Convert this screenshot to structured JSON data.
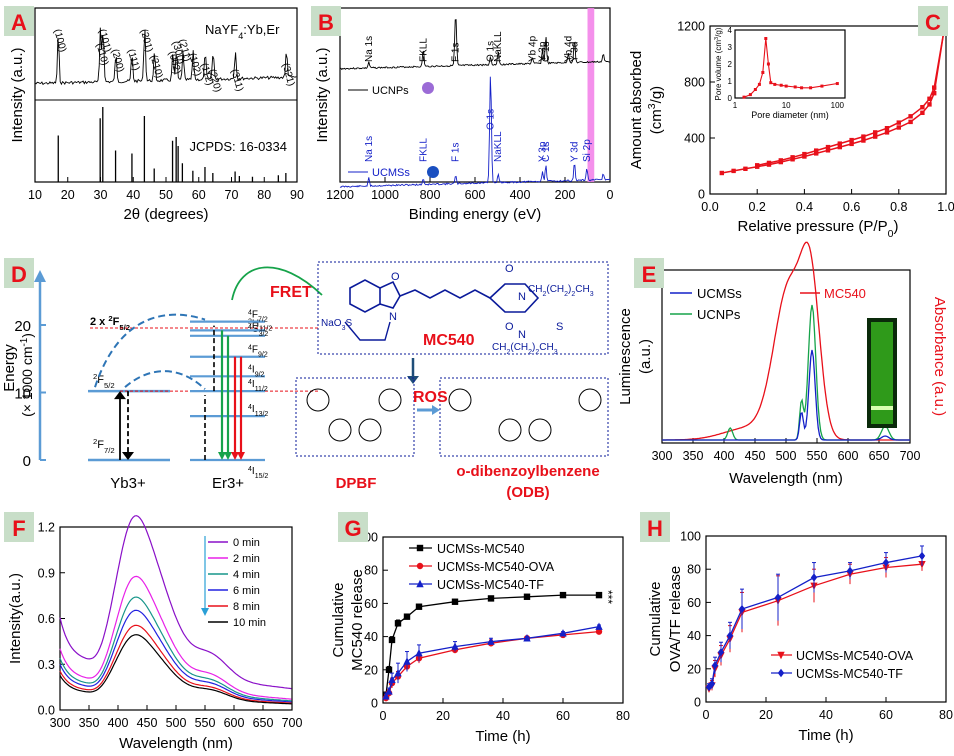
{
  "colors": {
    "black": "#000000",
    "red": "#e8101a",
    "blue": "#1420c8",
    "green": "#16a34a",
    "magenta": "#cc22cc",
    "cyan": "#2a9fd6",
    "darkblue": "#0a1a9a",
    "label_bg": "#c8dec8",
    "label_fg": "#e8101a",
    "pink": "#f27de8"
  },
  "panels": {
    "A": {
      "letter": "A",
      "material": "NaYF4:Yb,Er",
      "reference": "JCPDS: 16-0334",
      "xlabel": "2θ (degrees)",
      "ylabel": "Intensity (a.u.)",
      "xticks": [
        "10",
        "20",
        "30",
        "40",
        "50",
        "60",
        "70",
        "80",
        "90"
      ],
      "peaks": [
        {
          "hkl": "(100)",
          "x": 17.1
        },
        {
          "hkl": "(110)",
          "x": 30.0
        },
        {
          "hkl": "(101)",
          "x": 30.8
        },
        {
          "hkl": "(200)",
          "x": 34.7
        },
        {
          "hkl": "(111)",
          "x": 39.6
        },
        {
          "hkl": "(201)",
          "x": 43.5
        },
        {
          "hkl": "(210)",
          "x": 46.5
        },
        {
          "hkl": "(002)",
          "x": 52.1
        },
        {
          "hkl": "(300)",
          "x": 53.2
        },
        {
          "hkl": "(211)",
          "x": 55.2
        },
        {
          "hkl": "(102)",
          "x": 58.3
        },
        {
          "hkl": "(112)",
          "x": 62.0
        },
        {
          "hkl": "(220)",
          "x": 64.4
        },
        {
          "hkl": "(311)",
          "x": 71.2
        },
        {
          "hkl": "(321)",
          "x": 86.8
        }
      ],
      "ref_lines": [
        {
          "x": 17.1,
          "h": 0.62
        },
        {
          "x": 29.9,
          "h": 0.85
        },
        {
          "x": 30.7,
          "h": 1.0
        },
        {
          "x": 34.6,
          "h": 0.42
        },
        {
          "x": 39.6,
          "h": 0.38
        },
        {
          "x": 43.4,
          "h": 0.88
        },
        {
          "x": 46.4,
          "h": 0.18
        },
        {
          "x": 52.0,
          "h": 0.55
        },
        {
          "x": 53.1,
          "h": 0.6
        },
        {
          "x": 53.7,
          "h": 0.48
        },
        {
          "x": 55.0,
          "h": 0.25
        },
        {
          "x": 58.2,
          "h": 0.15
        },
        {
          "x": 61.9,
          "h": 0.2
        },
        {
          "x": 64.3,
          "h": 0.12
        },
        {
          "x": 71.1,
          "h": 0.14
        },
        {
          "x": 72.4,
          "h": 0.08
        },
        {
          "x": 76.4,
          "h": 0.07
        },
        {
          "x": 84.3,
          "h": 0.09
        },
        {
          "x": 86.6,
          "h": 0.12
        }
      ]
    },
    "B": {
      "letter": "B",
      "xlabel": "Binding energy (eV)",
      "ylabel": "Intensity (a.u.)",
      "xticks": [
        "1200",
        "1000",
        "800",
        "600",
        "400",
        "200",
        "0"
      ],
      "legend": {
        "ucnps": "UCNPs",
        "ucmss": "UCMSs"
      },
      "labels_top": [
        {
          "t": "Na 1s",
          "x": 1072
        },
        {
          "t": "FKLL",
          "x": 830
        },
        {
          "t": "F 1s",
          "x": 686
        },
        {
          "t": "O 1s",
          "x": 531
        },
        {
          "t": "NaKLL",
          "x": 497
        },
        {
          "t": "Yb 4p",
          "x": 345
        },
        {
          "t": "Y 3p",
          "x": 300
        },
        {
          "t": "C 1s",
          "x": 285
        },
        {
          "t": "Yb 4d",
          "x": 185
        },
        {
          "t": "Y 3d",
          "x": 158
        }
      ],
      "labels_bottom": [
        {
          "t": "Na 1s",
          "x": 1072
        },
        {
          "t": "FKLL",
          "x": 830
        },
        {
          "t": "F 1s",
          "x": 686
        },
        {
          "t": "O 1s",
          "x": 531
        },
        {
          "t": "NaKLL",
          "x": 497
        },
        {
          "t": "Y 3p",
          "x": 300
        },
        {
          "t": "C 1s",
          "x": 285
        },
        {
          "t": "Y 3d",
          "x": 158
        },
        {
          "t": "Si 2p",
          "x": 103
        }
      ]
    },
    "C": {
      "letter": "C",
      "xlabel": "Relative pressure (P/P0)",
      "ylabel": "Amount absorbed (cm3/g)",
      "xticks": [
        "0.0",
        "0.2",
        "0.4",
        "0.6",
        "0.8",
        "1.0"
      ],
      "yticks": [
        "0",
        "400",
        "800",
        "1200"
      ],
      "adsorption": {
        "x": [
          0.05,
          0.1,
          0.15,
          0.2,
          0.25,
          0.3,
          0.35,
          0.4,
          0.45,
          0.5,
          0.55,
          0.6,
          0.65,
          0.7,
          0.75,
          0.8,
          0.85,
          0.9,
          0.93,
          0.95,
          0.99
        ],
        "y": [
          150,
          165,
          180,
          195,
          210,
          228,
          248,
          268,
          290,
          312,
          335,
          358,
          382,
          410,
          440,
          475,
          515,
          580,
          640,
          720,
          1150
        ]
      },
      "desorption": {
        "x": [
          0.99,
          0.95,
          0.93,
          0.9,
          0.85,
          0.8,
          0.75,
          0.7,
          0.65,
          0.6,
          0.55,
          0.5,
          0.45,
          0.4,
          0.35,
          0.3,
          0.25,
          0.2
        ],
        "y": [
          1150,
          760,
          680,
          620,
          555,
          510,
          470,
          440,
          410,
          385,
          360,
          335,
          310,
          285,
          262,
          240,
          222,
          205
        ]
      },
      "inset": {
        "xlabel": "Pore diameter (nm)",
        "ylabel": "Pore volume (cm3/g)",
        "xticks": [
          "1",
          "10",
          "100"
        ],
        "yticks": [
          "0",
          "1",
          "2",
          "3",
          "4"
        ],
        "d": [
          1.5,
          2,
          2.5,
          3,
          3.5,
          4,
          4.5,
          5,
          6,
          8,
          10,
          15,
          20,
          30,
          50,
          100
        ],
        "v": [
          0.05,
          0.2,
          0.5,
          0.8,
          1.5,
          3.5,
          2.0,
          0.9,
          0.8,
          0.75,
          0.7,
          0.65,
          0.6,
          0.6,
          0.7,
          0.85
        ]
      }
    },
    "D": {
      "letter": "D",
      "ylabel1": "Energy",
      "ylabel2": "(× 1000 cm-1)",
      "yticks": [
        "0",
        "10",
        "20"
      ],
      "yb": "Yb3+",
      "er": "Er3+",
      "fret": "FRET",
      "yb_levels": [
        "2F7/2",
        "2F5/2",
        "2 x 2F5/2"
      ],
      "er_levels": [
        "4F7/2",
        "2H11/2",
        "4S3/2",
        "4F9/2",
        "4I9/2",
        "4I11/2",
        "4I13/2",
        "4I15/2"
      ],
      "mc540": "MC540",
      "ros": "ROS",
      "dpbf": "DPBF",
      "odb1": "o-dibenzoylbenzene",
      "odb2": "(ODB)",
      "chem": {
        "so3na": "NaO3S",
        "chain1": "CH2(CH2)2CH3",
        "chain2": "CH2(CH2)2CH3"
      }
    },
    "E": {
      "letter": "E",
      "xlabel": "Wavelength (nm)",
      "ylabel_left": "Luminescence (a.u.)",
      "ylabel_right": "Absorbance (a.u.)",
      "xticks": [
        "300",
        "350",
        "400",
        "450",
        "500",
        "550",
        "600",
        "650",
        "700"
      ],
      "legend": {
        "ucmss": "UCMSs",
        "ucnps": "UCNPs",
        "mc540": "MC540"
      }
    },
    "F": {
      "letter": "F",
      "xlabel": "Wavelength (nm)",
      "ylabel": "Intensity(a.u.)",
      "xticks": [
        "300",
        "350",
        "400",
        "450",
        "500",
        "550",
        "600",
        "650",
        "700"
      ],
      "yticks": [
        "0.0",
        "0.3",
        "0.6",
        "0.9",
        "1.2"
      ],
      "series": [
        {
          "name": "0 min",
          "color": "#8a10c8",
          "scale": 1.0
        },
        {
          "name": "2 min",
          "color": "#e822e8",
          "scale": 0.71
        },
        {
          "name": "4 min",
          "color": "#17968a",
          "scale": 0.6
        },
        {
          "name": "6 min",
          "color": "#2222e0",
          "scale": 0.53
        },
        {
          "name": "8 min",
          "color": "#e8101a",
          "scale": 0.45
        },
        {
          "name": "10 min",
          "color": "#000000",
          "scale": 0.4
        }
      ]
    },
    "G": {
      "letter": "G",
      "xlabel": "Time (h)",
      "ylabel1": "Cumulative",
      "ylabel2": "MC540 release",
      "significance": "***",
      "xticks": [
        "0",
        "20",
        "40",
        "60",
        "80"
      ],
      "yticks": [
        "0",
        "20",
        "40",
        "60",
        "80",
        "100"
      ],
      "series": [
        {
          "name": "UCMSs-MC540",
          "color": "#000000",
          "marker": "square",
          "x": [
            1,
            2,
            3,
            5,
            8,
            12,
            24,
            36,
            48,
            60,
            72
          ],
          "y": [
            5,
            20,
            38,
            48,
            52,
            58,
            61,
            63,
            64,
            65,
            65
          ],
          "err": [
            1,
            2,
            2,
            2,
            1,
            1,
            1,
            1,
            1,
            1,
            1
          ]
        },
        {
          "name": "UCMSs-MC540-OVA",
          "color": "#e8101a",
          "marker": "circle",
          "x": [
            1,
            2,
            3,
            5,
            8,
            12,
            24,
            36,
            48,
            60,
            72
          ],
          "y": [
            3,
            6,
            12,
            16,
            22,
            27,
            32,
            36,
            39,
            41,
            43
          ],
          "err": [
            2,
            2,
            3,
            3,
            3,
            3,
            2,
            2,
            1,
            1,
            1
          ]
        },
        {
          "name": "UCMSs-MC540-TF",
          "color": "#1420c8",
          "marker": "triangle",
          "x": [
            1,
            2,
            3,
            5,
            8,
            12,
            24,
            36,
            48,
            60,
            72
          ],
          "y": [
            4,
            7,
            14,
            18,
            25,
            30,
            34,
            37,
            39,
            42,
            46
          ],
          "err": [
            2,
            2,
            4,
            6,
            6,
            5,
            3,
            2,
            1,
            1,
            1
          ]
        }
      ]
    },
    "H": {
      "letter": "H",
      "xlabel": "Time (h)",
      "ylabel1": "Cumulative",
      "ylabel2": "OVA/TF release",
      "xticks": [
        "0",
        "20",
        "40",
        "60",
        "80"
      ],
      "yticks": [
        "0",
        "20",
        "40",
        "60",
        "80",
        "100"
      ],
      "series": [
        {
          "name": "UCMSs-MC540-OVA",
          "color": "#e8101a",
          "marker": "tri-down",
          "x": [
            1,
            2,
            3,
            5,
            8,
            12,
            24,
            36,
            48,
            60,
            72
          ],
          "y": [
            8,
            10,
            20,
            28,
            38,
            54,
            61,
            70,
            77,
            81,
            83
          ],
          "err": [
            2,
            3,
            5,
            6,
            8,
            12,
            15,
            10,
            6,
            6,
            4
          ]
        },
        {
          "name": "UCMSs-MC540-TF",
          "color": "#1420c8",
          "marker": "diamond",
          "x": [
            1,
            2,
            3,
            5,
            8,
            12,
            24,
            36,
            48,
            60,
            72
          ],
          "y": [
            9,
            11,
            22,
            30,
            40,
            56,
            63,
            75,
            79,
            84,
            88
          ],
          "err": [
            2,
            3,
            5,
            6,
            8,
            12,
            14,
            9,
            5,
            6,
            6
          ]
        }
      ]
    }
  },
  "chart_data": [
    {
      "type": "bar",
      "title": "A",
      "xlabel": "2θ (degrees)",
      "ylabel": "Intensity (a.u.)",
      "xlim": [
        10,
        90
      ]
    },
    {
      "type": "line",
      "title": "B",
      "xlabel": "Binding energy (eV)",
      "ylabel": "Intensity (a.u.)",
      "xlim": [
        1200,
        0
      ],
      "series": [
        {
          "name": "UCNPs"
        },
        {
          "name": "UCMSs"
        }
      ]
    },
    {
      "type": "line",
      "title": "C",
      "xlabel": "Relative pressure (P/P0)",
      "ylabel": "Amount absorbed (cm3/g)",
      "xlim": [
        0,
        1
      ],
      "ylim": [
        0,
        1200
      ]
    },
    {
      "type": "line",
      "title": "E",
      "xlabel": "Wavelength (nm)",
      "xlim": [
        300,
        700
      ],
      "series": [
        {
          "name": "UCMSs"
        },
        {
          "name": "UCNPs"
        },
        {
          "name": "MC540"
        }
      ]
    },
    {
      "type": "line",
      "title": "F",
      "xlabel": "Wavelength (nm)",
      "ylabel": "Intensity(a.u.)",
      "xlim": [
        300,
        700
      ],
      "ylim": [
        0,
        1.2
      ],
      "series": [
        {
          "name": "0 min"
        },
        {
          "name": "2 min"
        },
        {
          "name": "4 min"
        },
        {
          "name": "6 min"
        },
        {
          "name": "8 min"
        },
        {
          "name": "10 min"
        }
      ]
    },
    {
      "type": "line",
      "title": "G",
      "xlabel": "Time (h)",
      "ylabel": "Cumulative MC540 release",
      "xlim": [
        0,
        80
      ],
      "ylim": [
        0,
        100
      ],
      "series": [
        {
          "name": "UCMSs-MC540",
          "x": [
            1,
            2,
            3,
            5,
            8,
            12,
            24,
            36,
            48,
            60,
            72
          ],
          "values": [
            5,
            20,
            38,
            48,
            52,
            58,
            61,
            63,
            64,
            65,
            65
          ]
        },
        {
          "name": "UCMSs-MC540-OVA",
          "x": [
            1,
            2,
            3,
            5,
            8,
            12,
            24,
            36,
            48,
            60,
            72
          ],
          "values": [
            3,
            6,
            12,
            16,
            22,
            27,
            32,
            36,
            39,
            41,
            43
          ]
        },
        {
          "name": "UCMSs-MC540-TF",
          "x": [
            1,
            2,
            3,
            5,
            8,
            12,
            24,
            36,
            48,
            60,
            72
          ],
          "values": [
            4,
            7,
            14,
            18,
            25,
            30,
            34,
            37,
            39,
            42,
            46
          ]
        }
      ]
    },
    {
      "type": "line",
      "title": "H",
      "xlabel": "Time (h)",
      "ylabel": "Cumulative OVA/TF release",
      "xlim": [
        0,
        80
      ],
      "ylim": [
        0,
        100
      ],
      "series": [
        {
          "name": "UCMSs-MC540-OVA",
          "x": [
            1,
            2,
            3,
            5,
            8,
            12,
            24,
            36,
            48,
            60,
            72
          ],
          "values": [
            8,
            10,
            20,
            28,
            38,
            54,
            61,
            70,
            77,
            81,
            83
          ]
        },
        {
          "name": "UCMSs-MC540-TF",
          "x": [
            1,
            2,
            3,
            5,
            8,
            12,
            24,
            36,
            48,
            60,
            72
          ],
          "values": [
            9,
            11,
            22,
            30,
            40,
            56,
            63,
            75,
            79,
            84,
            88
          ]
        }
      ]
    }
  ]
}
